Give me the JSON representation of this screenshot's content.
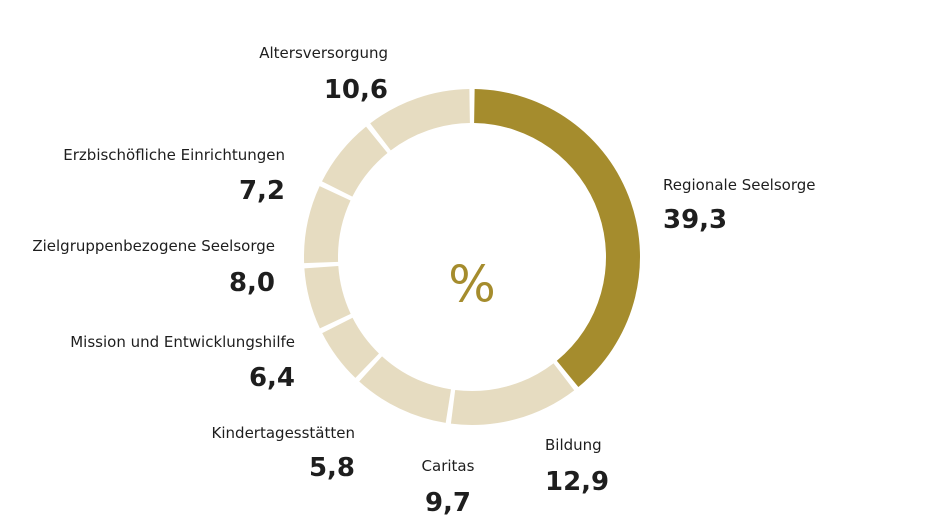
{
  "chart_data": {
    "type": "pie",
    "center_label": "%",
    "colors": {
      "highlight": "#a58c2d",
      "default": "#e6dcc1",
      "text": "#1e1e1e"
    },
    "slices": [
      {
        "label": "Regionale Seelsorge",
        "value": 39.3,
        "value_text": "39,3",
        "highlight": true
      },
      {
        "label": "Bildung",
        "value": 12.9,
        "value_text": "12,9",
        "highlight": false
      },
      {
        "label": "Caritas",
        "value": 9.7,
        "value_text": "9,7",
        "highlight": false
      },
      {
        "label": "Kindertagesstätten",
        "value": 5.8,
        "value_text": "5,8",
        "highlight": false
      },
      {
        "label": "Mission und Entwicklungshilfe",
        "value": 6.4,
        "value_text": "6,4",
        "highlight": false
      },
      {
        "label": "Zielgruppenbezogene Seelsorge",
        "value": 8.0,
        "value_text": "8,0",
        "highlight": false
      },
      {
        "label": "Erzbischöfliche Einrichtungen",
        "value": 7.2,
        "value_text": "7,2",
        "highlight": false
      },
      {
        "label": "Altersversorgung",
        "value": 10.6,
        "value_text": "10,6",
        "highlight": false
      }
    ]
  }
}
